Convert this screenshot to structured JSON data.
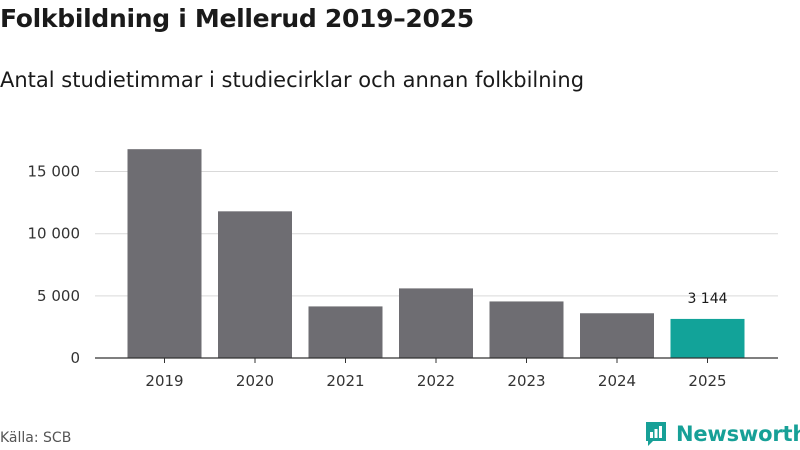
{
  "title": "Folkbildning i Mellerud 2019–2025",
  "subtitle": "Antal studietimmar i studiecirklar och annan folkbilning",
  "source": "Källa: SCB",
  "brand": {
    "name": "Newsworthy",
    "icon": "newsworthy-logo-icon",
    "color": "#17a097"
  },
  "colors": {
    "bar": "#6e6d72",
    "highlight": "#12a399",
    "grid": "#d9d9d9",
    "axis": "#333333"
  },
  "chart_data": {
    "type": "bar",
    "title": "Folkbildning i Mellerud 2019–2025",
    "subtitle": "Antal studietimmar i studiecirklar och annan folkbilning",
    "categories": [
      "2019",
      "2020",
      "2021",
      "2022",
      "2023",
      "2024",
      "2025"
    ],
    "values": [
      16800,
      11800,
      4150,
      5600,
      4550,
      3600,
      3144
    ],
    "ylim": [
      0,
      17500
    ],
    "yticks": [
      0,
      5000,
      10000,
      15000
    ],
    "ytick_labels": [
      "0",
      "5 000",
      "10 000",
      "15 000"
    ],
    "highlight_index": 6,
    "data_labels": [
      {
        "index": 6,
        "text": "3 144"
      }
    ],
    "grid": true,
    "legend": "none"
  }
}
